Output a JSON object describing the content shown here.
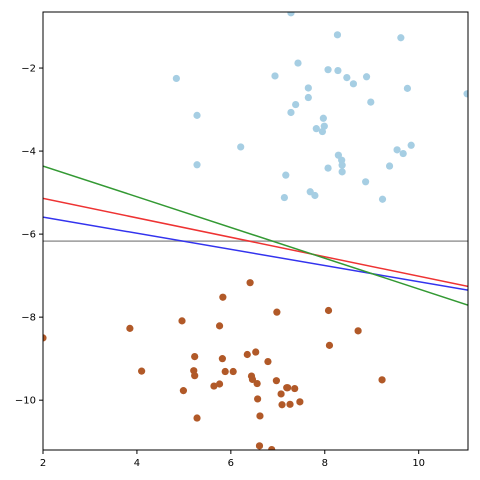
{
  "chart_data": {
    "type": "scatter",
    "title": "",
    "xlabel": "",
    "ylabel": "",
    "xlim": [
      2.0,
      11.05
    ],
    "ylim": [
      -11.2,
      -0.65
    ],
    "xticks": [
      2,
      4,
      6,
      8,
      10
    ],
    "yticks": [
      -10,
      -8,
      -6,
      -4,
      -2
    ],
    "grid": false,
    "series": [
      {
        "kind": "points",
        "color": "#a6cee3",
        "points": [
          [
            7.28,
            -0.67
          ],
          [
            8.27,
            -1.2
          ],
          [
            9.62,
            -1.27
          ],
          [
            7.43,
            -1.88
          ],
          [
            6.94,
            -2.19
          ],
          [
            4.84,
            -2.25
          ],
          [
            8.07,
            -2.04
          ],
          [
            8.28,
            -2.06
          ],
          [
            8.47,
            -2.23
          ],
          [
            8.61,
            -2.38
          ],
          [
            8.89,
            -2.21
          ],
          [
            9.76,
            -2.49
          ],
          [
            11.03,
            -2.62
          ],
          [
            7.65,
            -2.48
          ],
          [
            7.65,
            -2.71
          ],
          [
            7.38,
            -2.88
          ],
          [
            7.28,
            -3.07
          ],
          [
            5.28,
            -3.14
          ],
          [
            8.98,
            -2.82
          ],
          [
            7.97,
            -3.21
          ],
          [
            7.99,
            -3.4
          ],
          [
            7.82,
            -3.46
          ],
          [
            7.95,
            -3.53
          ],
          [
            6.21,
            -3.9
          ],
          [
            9.84,
            -3.86
          ],
          [
            9.54,
            -3.97
          ],
          [
            9.67,
            -4.06
          ],
          [
            8.29,
            -4.1
          ],
          [
            8.36,
            -4.22
          ],
          [
            8.37,
            -4.34
          ],
          [
            8.37,
            -4.5
          ],
          [
            8.07,
            -4.41
          ],
          [
            9.38,
            -4.36
          ],
          [
            5.28,
            -4.33
          ],
          [
            7.17,
            -4.58
          ],
          [
            8.87,
            -4.74
          ],
          [
            7.69,
            -4.98
          ],
          [
            7.79,
            -5.07
          ],
          [
            7.14,
            -5.12
          ],
          [
            9.23,
            -5.16
          ]
        ]
      },
      {
        "kind": "points",
        "color": "#b15928",
        "points": [
          [
            2.0,
            -8.5
          ],
          [
            3.85,
            -8.27
          ],
          [
            4.1,
            -9.3
          ],
          [
            4.96,
            -8.09
          ],
          [
            4.99,
            -9.77
          ],
          [
            5.23,
            -8.95
          ],
          [
            5.21,
            -9.29
          ],
          [
            5.23,
            -9.41
          ],
          [
            5.28,
            -10.43
          ],
          [
            5.64,
            -9.66
          ],
          [
            5.76,
            -9.61
          ],
          [
            5.76,
            -8.21
          ],
          [
            5.83,
            -7.52
          ],
          [
            5.82,
            -9.0
          ],
          [
            5.88,
            -9.31
          ],
          [
            6.05,
            -9.31
          ],
          [
            6.35,
            -8.9
          ],
          [
            6.41,
            -7.17
          ],
          [
            6.44,
            -9.42
          ],
          [
            6.46,
            -9.5
          ],
          [
            6.53,
            -8.84
          ],
          [
            6.56,
            -9.6
          ],
          [
            6.57,
            -9.97
          ],
          [
            6.62,
            -10.38
          ],
          [
            6.61,
            -11.1
          ],
          [
            6.79,
            -9.07
          ],
          [
            6.87,
            -11.19
          ],
          [
            6.97,
            -9.53
          ],
          [
            6.98,
            -7.88
          ],
          [
            7.07,
            -9.85
          ],
          [
            7.09,
            -10.11
          ],
          [
            7.19,
            -9.7
          ],
          [
            7.21,
            -9.7
          ],
          [
            7.26,
            -10.1
          ],
          [
            7.36,
            -9.72
          ],
          [
            7.47,
            -10.04
          ],
          [
            8.08,
            -7.84
          ],
          [
            8.1,
            -8.68
          ],
          [
            8.71,
            -8.33
          ],
          [
            9.22,
            -9.51
          ]
        ]
      },
      {
        "kind": "line",
        "color": "#999999",
        "x": [
          2.0,
          11.05
        ],
        "y": [
          -6.17,
          -6.17
        ]
      },
      {
        "kind": "line",
        "color": "#3333ee",
        "x": [
          2.0,
          11.05
        ],
        "y": [
          -5.59,
          -7.35
        ]
      },
      {
        "kind": "line",
        "color": "#ee3333",
        "x": [
          2.0,
          11.05
        ],
        "y": [
          -5.14,
          -7.26
        ]
      },
      {
        "kind": "line",
        "color": "#339933",
        "x": [
          2.0,
          11.05
        ],
        "y": [
          -4.36,
          -7.71
        ]
      }
    ]
  }
}
